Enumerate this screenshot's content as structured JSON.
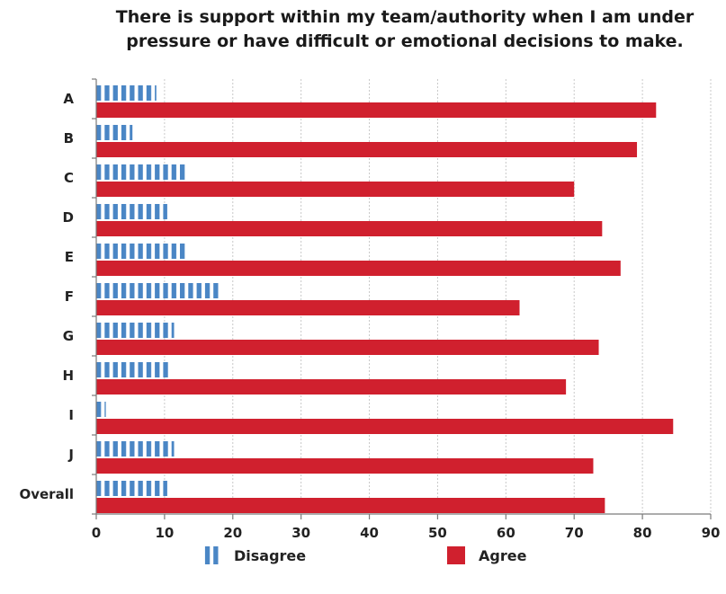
{
  "chart_data": {
    "type": "bar",
    "orientation": "horizontal",
    "title": "There is support within my team/authority when I am under pressure or have difficult or emotional decisions to make.",
    "title_lines": [
      "There is support within my team/authority when I am under",
      "pressure or have difficult or emotional decisions to make."
    ],
    "xlabel": "",
    "ylabel": "",
    "categories": [
      "A",
      "B",
      "C",
      "D",
      "E",
      "F",
      "G",
      "H",
      "I",
      "J",
      "Overall"
    ],
    "series": [
      {
        "name": "Disagree",
        "color": "#4a86c5",
        "pattern": "vertical-stripes",
        "values": [
          8.8,
          5.3,
          13.3,
          10.4,
          13.2,
          18.3,
          11.4,
          11.0,
          1.4,
          11.4,
          10.4
        ]
      },
      {
        "name": "Agree",
        "color": "#d0202e",
        "pattern": "solid",
        "values": [
          82.0,
          79.2,
          70.0,
          74.1,
          76.8,
          62.0,
          73.6,
          68.8,
          84.5,
          72.8,
          74.5
        ]
      }
    ],
    "xlim": [
      0,
      90
    ],
    "xticks": [
      "0",
      "10",
      "20",
      "30",
      "40",
      "50",
      "60",
      "70",
      "80",
      "90"
    ],
    "grid": true,
    "legend_position": "bottom"
  }
}
